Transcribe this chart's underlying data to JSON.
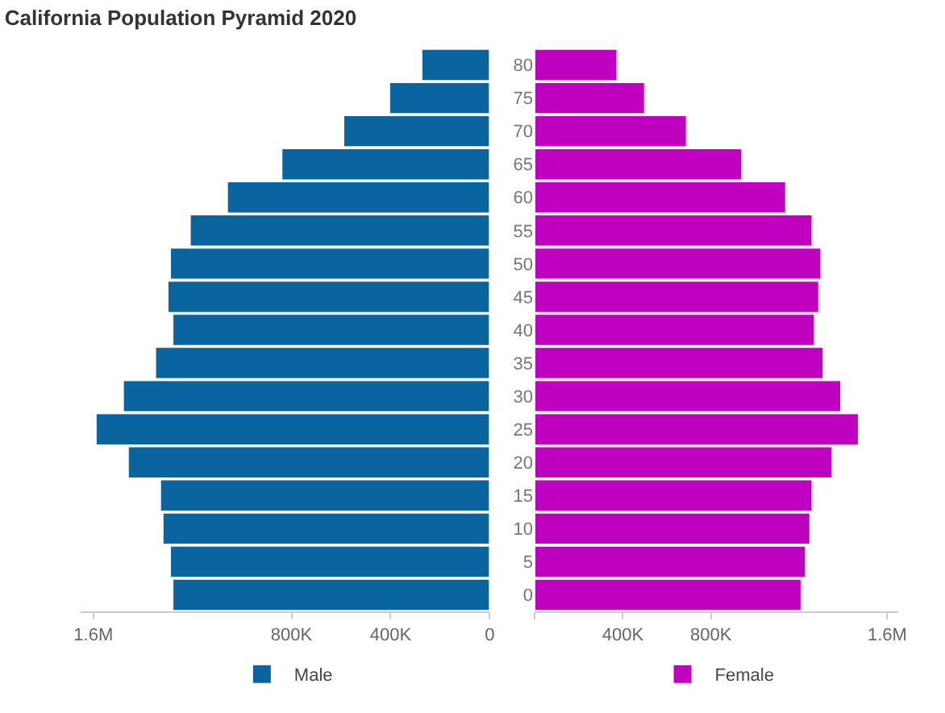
{
  "chart_data": [
    {
      "type": "bar",
      "orientation": "horizontal",
      "title": "California Population Pyramid 2020",
      "categories": [
        "80",
        "75",
        "70",
        "65",
        "60",
        "55",
        "50",
        "45",
        "40",
        "35",
        "30",
        "25",
        "20",
        "15",
        "10",
        "5",
        "0"
      ],
      "series": [
        {
          "name": "Male",
          "color": "#0a64a0",
          "values": [
            275000,
            405000,
            590000,
            840000,
            1060000,
            1210000,
            1290000,
            1300000,
            1280000,
            1350000,
            1480000,
            1590000,
            1460000,
            1330000,
            1320000,
            1290000,
            1280000
          ]
        }
      ],
      "xlim": [
        1650000,
        0
      ],
      "xticks": [
        {
          "value": 1600000,
          "label": "1.6M"
        },
        {
          "value": 800000,
          "label": "800K"
        },
        {
          "value": 400000,
          "label": "400K"
        },
        0
      ],
      "tick_labels": "x",
      "legend": "bottom"
    },
    {
      "type": "bar",
      "orientation": "horizontal",
      "categories": [
        "80",
        "75",
        "70",
        "65",
        "60",
        "55",
        "50",
        "45",
        "40",
        "35",
        "30",
        "25",
        "20",
        "15",
        "10",
        "5",
        "0"
      ],
      "series": [
        {
          "name": "Female",
          "color": "#c000c0",
          "values": [
            375000,
            500000,
            690000,
            940000,
            1140000,
            1260000,
            1300000,
            1290000,
            1270000,
            1310000,
            1390000,
            1470000,
            1350000,
            1260000,
            1250000,
            1230000,
            1210000
          ]
        }
      ],
      "xlim": [
        0,
        1650000
      ],
      "xticks": [
        {
          "value": 0,
          "label": null
        },
        {
          "value": 400000,
          "label": "400K"
        },
        {
          "value": 800000,
          "label": "800K"
        },
        {
          "value": 1600000,
          "label": "1.6M"
        }
      ],
      "legend": "bottom"
    }
  ]
}
